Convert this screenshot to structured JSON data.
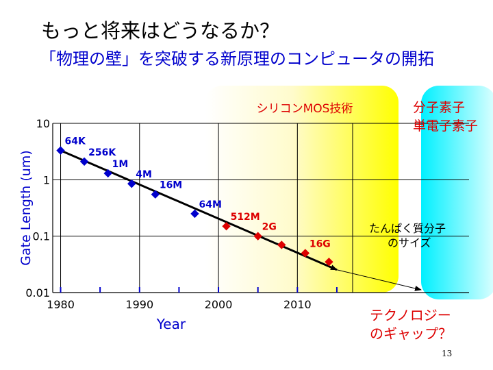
{
  "slide": {
    "title": "もっと将来はどうなるか？",
    "subtitle": "「物理の壁」を突破する新原理のコンピュータの開拓",
    "slide_number": "13"
  },
  "regions": {
    "silicon_label": "シリコンMOS技術",
    "molecular_label_1": "分子素子",
    "molecular_label_2": "単電子素子",
    "protein_label_1": "たんぱく質分子",
    "protein_label_2": "のサイズ",
    "gap_label_1": "テクノロジー",
    "gap_label_2": "のギャップ？"
  },
  "colors": {
    "blue_marker": "#0000cc",
    "red_marker": "#dd0000",
    "silicon_region": "#ffff00",
    "molecular_region": "#00ffff",
    "axis_title": "#0000cc",
    "region_label": "#dd0000"
  },
  "chart_data": {
    "type": "scatter",
    "xlabel": "Year",
    "ylabel": "Gate Length (um)",
    "yscale": "log",
    "xlim": [
      1979,
      2017
    ],
    "ylim": [
      0.01,
      10
    ],
    "xticks": [
      "1980",
      "1990",
      "2000",
      "2010"
    ],
    "yticks": [
      "10",
      "1",
      "0.1",
      "0.01"
    ],
    "grid": true,
    "series": [
      {
        "marker_color": "blue",
        "points": [
          {
            "label": "64K",
            "x": 1980,
            "y": 3.3
          },
          {
            "label": "256K",
            "x": 1983,
            "y": 2.1
          },
          {
            "label": "1M",
            "x": 1986,
            "y": 1.3
          },
          {
            "label": "4M",
            "x": 1989,
            "y": 0.85
          },
          {
            "label": "16M",
            "x": 1992,
            "y": 0.55
          },
          {
            "label": "64M",
            "x": 1997,
            "y": 0.25
          }
        ]
      },
      {
        "marker_color": "red",
        "points": [
          {
            "label": "512M",
            "x": 2001,
            "y": 0.15
          },
          {
            "label": "2G",
            "x": 2005,
            "y": 0.1
          },
          {
            "label": "",
            "x": 2008,
            "y": 0.07
          },
          {
            "label": "16G",
            "x": 2011,
            "y": 0.05
          },
          {
            "label": "",
            "x": 2014,
            "y": 0.035
          }
        ]
      }
    ],
    "trend_line": {
      "x": [
        1980,
        2015
      ],
      "y": [
        3.3,
        0.03
      ]
    }
  }
}
